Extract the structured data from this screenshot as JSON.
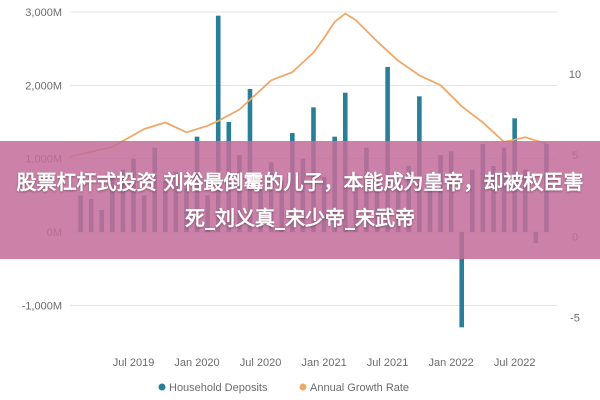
{
  "chart_data": {
    "type": "bar",
    "series": [
      {
        "name": "Household Deposits",
        "kind": "bar",
        "axis": "left",
        "color": "#2a7f98",
        "x": [
          "2019-02",
          "2019-03",
          "2019-04",
          "2019-05",
          "2019-06",
          "2019-07",
          "2019-08",
          "2019-09",
          "2019-10",
          "2019-11",
          "2019-12",
          "2020-01",
          "2020-02",
          "2020-03",
          "2020-04",
          "2020-05",
          "2020-06",
          "2020-07",
          "2020-08",
          "2020-09",
          "2020-10",
          "2020-11",
          "2020-12",
          "2021-01",
          "2021-02",
          "2021-03",
          "2021-04",
          "2021-05",
          "2021-06",
          "2021-07",
          "2021-08",
          "2021-09",
          "2021-10",
          "2021-11",
          "2021-12",
          "2022-01",
          "2022-02",
          "2022-03",
          "2022-04",
          "2022-05",
          "2022-06",
          "2022-07",
          "2022-08",
          "2022-09",
          "2022-10"
        ],
        "values": [
          500,
          450,
          300,
          750,
          850,
          1000,
          500,
          1150,
          700,
          820,
          600,
          1300,
          500,
          2950,
          1500,
          1050,
          1950,
          600,
          950,
          700,
          1350,
          1000,
          1700,
          750,
          1300,
          1900,
          650,
          1150,
          750,
          2250,
          700,
          900,
          1850,
          750,
          1050,
          1100,
          -1300,
          850,
          1200,
          900,
          1150,
          1550,
          850,
          -150,
          1200
        ]
      },
      {
        "name": "Annual Growth Rate",
        "kind": "line",
        "axis": "right",
        "color": "#f0a868",
        "x": [
          "2019-01",
          "2019-05",
          "2019-08",
          "2019-10",
          "2019-12",
          "2020-02",
          "2020-03",
          "2020-05",
          "2020-08",
          "2020-10",
          "2020-12",
          "2021-01",
          "2021-02",
          "2021-03",
          "2021-04",
          "2021-06",
          "2021-08",
          "2021-10",
          "2021-12",
          "2022-02",
          "2022-04",
          "2022-06",
          "2022-08",
          "2022-10"
        ],
        "values": [
          4.9,
          5.5,
          6.6,
          7.0,
          6.4,
          6.8,
          7.1,
          7.8,
          9.6,
          10.1,
          11.3,
          12.2,
          13.2,
          13.7,
          13.3,
          12.0,
          10.8,
          9.9,
          9.3,
          8.0,
          7.0,
          5.8,
          6.1,
          5.7
        ]
      }
    ],
    "ylim_left": [
      -1500,
      3000
    ],
    "ylim_right": [
      -6.5,
      13.8
    ],
    "xlim": [
      "2019-01",
      "2022-11"
    ],
    "y_ticks_left": [
      "3,000M",
      "2,000M",
      "1,000M",
      "0M",
      "-1,000M"
    ],
    "y_ticks_left_values": [
      3000,
      2000,
      1000,
      0,
      -1000
    ],
    "y_ticks_right": [
      "10",
      "5",
      "0",
      "-5"
    ],
    "y_ticks_right_values": [
      10,
      5,
      0,
      -5
    ],
    "x_ticks": [
      "Jul 2019",
      "Jan 2020",
      "Jul 2020",
      "Jan 2021",
      "Jul 2021",
      "Jan 2022",
      "Jul 2022"
    ],
    "x_ticks_values": [
      "2019-07",
      "2020-01",
      "2020-07",
      "2021-01",
      "2021-07",
      "2022-01",
      "2022-07"
    ],
    "grid": true,
    "legend": "bottom"
  },
  "overlay": {
    "title": "股票杠杆式投资 刘裕最倒霉的儿子，本能成为皇帝，却被权臣害死_刘义真_宋少帝_宋武帝",
    "color": "#c46e9a"
  },
  "legend_items": [
    "Household Deposits",
    "Annual Growth Rate"
  ]
}
